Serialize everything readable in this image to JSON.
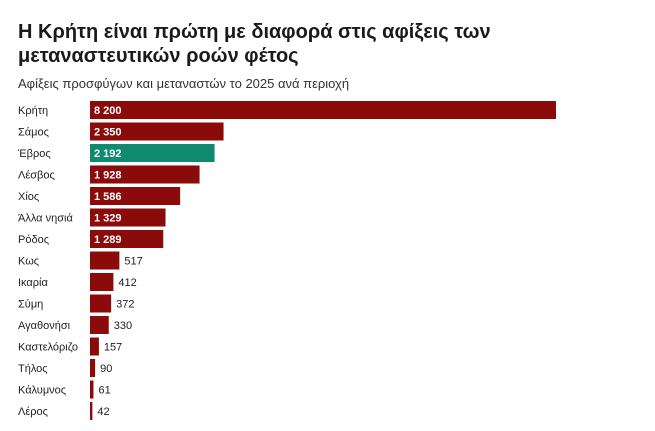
{
  "chart_data": {
    "type": "bar",
    "orientation": "horizontal",
    "title": "Η Κρήτη είναι πρώτη με διαφορά στις αφίξεις των μεταναστευτικών ροών φέτος",
    "subtitle": "Αφίξεις προσφύγων και μεταναστών το 2025 ανά περιοχή",
    "categories": [
      "Κρήτη",
      "Σάμος",
      "Έβρος",
      "Λέσβος",
      "Χίος",
      "Άλλα νησιά",
      "Ρόδος",
      "Κως",
      "Ικαρία",
      "Σύμη",
      "Αγαθονήσι",
      "Καστελόριζο",
      "Τήλος",
      "Κάλυμνος",
      "Λέρος"
    ],
    "values": [
      8200,
      2350,
      2192,
      1928,
      1586,
      1329,
      1289,
      517,
      412,
      372,
      330,
      157,
      90,
      61,
      42
    ],
    "value_labels": [
      "8 200",
      "2 350",
      "2 192",
      "1 928",
      "1 586",
      "1 329",
      "1 289",
      "517",
      "412",
      "372",
      "330",
      "157",
      "90",
      "61",
      "42"
    ],
    "highlight_category": "Έβρος",
    "colors": {
      "default": "#8b0a0a",
      "highlight": "#0f8a6e"
    },
    "xlim": [
      0,
      8200
    ],
    "grid": false,
    "legend": "none"
  }
}
